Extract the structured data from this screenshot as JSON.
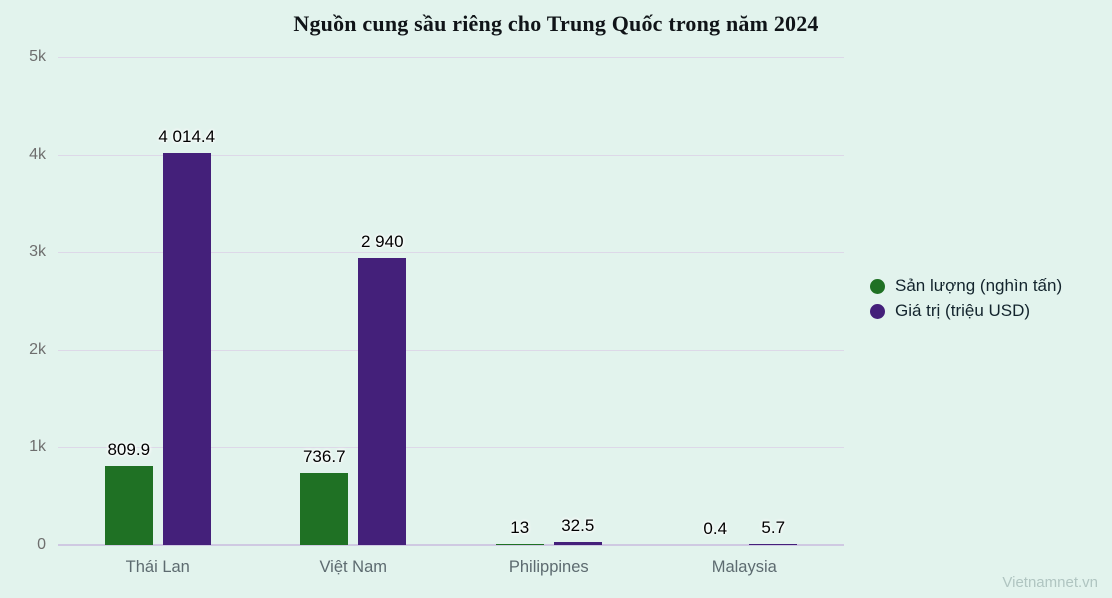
{
  "page": {
    "title": "Nguồn cung sầu riêng cho Trung Quốc trong năm 2024",
    "watermark": "Vietnamnet.vn"
  },
  "colors": {
    "background": "#e2f3ed",
    "grid": "#ddd8e8",
    "baseline": "#cfc9e2",
    "production": "#1f7124",
    "value": "#44207a",
    "tick_text": "#6e6e6e",
    "category_text": "#5d6b70",
    "legend_text": "#13242d",
    "watermark_text": "#b0c5c1"
  },
  "chart_data": {
    "type": "bar",
    "title": "Nguồn cung sầu riêng cho Trung Quốc trong năm 2024",
    "categories": [
      "Thái Lan",
      "Việt Nam",
      "Philippines",
      "Malaysia"
    ],
    "series": [
      {
        "name": "Sản lượng (nghìn tấn)",
        "color": "#1f7124",
        "values": [
          809.9,
          736.7,
          13,
          0.4
        ],
        "value_labels": [
          "809.9",
          "736.7",
          "13",
          "0.4"
        ]
      },
      {
        "name": "Giá trị (triệu USD)",
        "color": "#44207a",
        "values": [
          4014.4,
          2940,
          32.5,
          5.7
        ],
        "value_labels": [
          "4 014.4",
          "2 940",
          "32.5",
          "5.7"
        ]
      }
    ],
    "xlabel": "",
    "ylabel": "",
    "ylim": [
      0,
      5000
    ],
    "y_ticks": [
      {
        "value": 0,
        "label": "0"
      },
      {
        "value": 1000,
        "label": "1k"
      },
      {
        "value": 2000,
        "label": "2k"
      },
      {
        "value": 3000,
        "label": "3k"
      },
      {
        "value": 4000,
        "label": "4k"
      },
      {
        "value": 5000,
        "label": "5k"
      }
    ],
    "grid": true,
    "legend_position": "right"
  },
  "legend": {
    "items": [
      {
        "label": "Sản lượng (nghìn tấn)",
        "color": "#1f7124"
      },
      {
        "label": "Giá trị (triệu USD)",
        "color": "#44207a"
      }
    ]
  }
}
